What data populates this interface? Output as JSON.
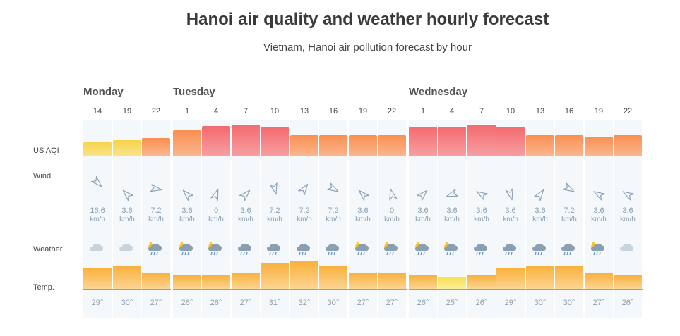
{
  "chart_data": {
    "type": "table",
    "title": "Hanoi air quality and weather hourly forecast",
    "subtitle": "Vietnam, Hanoi air pollution forecast by hour",
    "row_labels": {
      "aqi": "US AQI",
      "wind": "Wind",
      "weather": "Weather",
      "temp": "Temp."
    },
    "wind_unit": "km/h",
    "days": [
      {
        "name": "Monday",
        "start": 0
      },
      {
        "name": "Tuesday",
        "start": 3
      },
      {
        "name": "Wednesday",
        "start": 11
      }
    ],
    "hours": [
      "14",
      "19",
      "22",
      "1",
      "4",
      "7",
      "10",
      "13",
      "16",
      "19",
      "22",
      "1",
      "4",
      "7",
      "10",
      "13",
      "16",
      "19",
      "22"
    ],
    "aqi": [
      60,
      70,
      80,
      115,
      135,
      140,
      130,
      92,
      92,
      92,
      92,
      130,
      130,
      140,
      130,
      92,
      92,
      85,
      92
    ],
    "aqi_colors": [
      "#f6d44a",
      "#f6d44a",
      "#f98f52",
      "#f98f52",
      "#f36a6f",
      "#f36a6f",
      "#f36a6f",
      "#f98f52",
      "#f98f52",
      "#f98f52",
      "#f98f52",
      "#f36a6f",
      "#f36a6f",
      "#f36a6f",
      "#f36a6f",
      "#f98f52",
      "#f98f52",
      "#f98f52",
      "#f98f52"
    ],
    "wind_speed": [
      "16.6",
      "3.6",
      "7.2",
      "3.6",
      "0",
      "3.6",
      "7.2",
      "7.2",
      "7.2",
      "3.6",
      "0",
      "3.6",
      "3.6",
      "3.6",
      "3.6",
      "3.6",
      "7.2",
      "3.6",
      "3.6"
    ],
    "wind_direction_deg": [
      135,
      315,
      100,
      315,
      20,
      45,
      165,
      35,
      120,
      315,
      345,
      45,
      250,
      300,
      165,
      35,
      120,
      300,
      300
    ],
    "weather": [
      "cloudy",
      "cloudy",
      "rain-thunder",
      "rain-thunder",
      "rain-thunder",
      "rain",
      "rain",
      "rain",
      "rain",
      "rain-thunder",
      "rain-thunder",
      "rain-thunder",
      "rain-thunder",
      "rain",
      "rain",
      "rain",
      "rain",
      "rain-thunder",
      "cloudy"
    ],
    "temperature": [
      29,
      30,
      27,
      26,
      26,
      27,
      31,
      32,
      30,
      27,
      27,
      26,
      25,
      26,
      29,
      30,
      30,
      27,
      26
    ],
    "temp_colors": [
      "#f9b03a",
      "#f9b03a",
      "#f9b03a",
      "#f9b03a",
      "#f9b03a",
      "#f9b03a",
      "#f9b03a",
      "#f9b03a",
      "#f9b03a",
      "#f9b03a",
      "#f9b03a",
      "#f9b03a",
      "#f7e04b",
      "#f9b03a",
      "#f9b03a",
      "#f9b03a",
      "#f9b03a",
      "#f9b03a",
      "#f9b03a"
    ],
    "temp_unit": "°"
  },
  "colors": {
    "cloud": "#c9d3dc",
    "rain_cloud": "#8a9fb2",
    "bolt": "#f6c22b",
    "drop": "#5f8fc7",
    "arrow": "#8fa3b5"
  }
}
